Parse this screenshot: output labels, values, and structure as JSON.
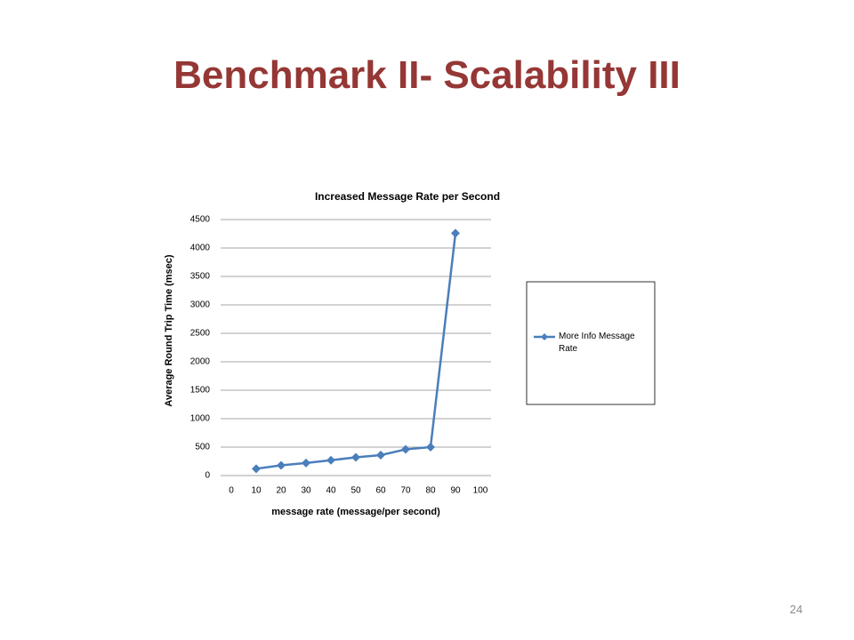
{
  "slide": {
    "title": "Benchmark II- Scalability III",
    "page_number": "24"
  },
  "chart_data": {
    "type": "line",
    "title": "Increased Message Rate per Second",
    "x_label": "message rate (message/per second)",
    "y_label": "Average Round Trip Time (msec)",
    "x": [
      10,
      20,
      30,
      40,
      50,
      60,
      70,
      80,
      90
    ],
    "series": [
      {
        "name": "More Info Message Rate",
        "color": "#4a7ebb",
        "values": [
          120,
          180,
          220,
          270,
          320,
          360,
          460,
          500,
          4260
        ]
      }
    ],
    "xlim": [
      0,
      100
    ],
    "xticks": [
      0,
      10,
      20,
      30,
      40,
      50,
      60,
      70,
      80,
      90,
      100
    ],
    "ylim": [
      0,
      4500
    ],
    "yticks": [
      0,
      500,
      1000,
      1500,
      2000,
      2500,
      3000,
      3500,
      4000,
      4500
    ],
    "grid": true,
    "legend": "right"
  }
}
